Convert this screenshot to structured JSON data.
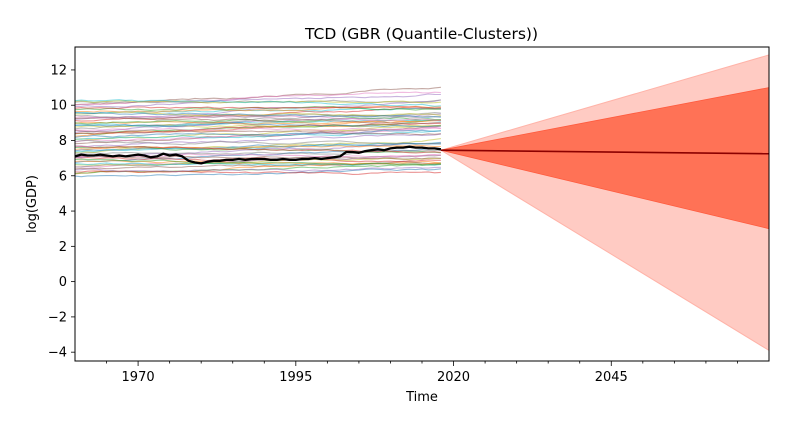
{
  "chart_data": {
    "type": "line",
    "title": "TCD (GBR (Quantile-Clusters))",
    "xlabel": "Time",
    "ylabel": "log(GDP)",
    "xlim": [
      1960,
      2070
    ],
    "ylim": [
      -4.5,
      13.3
    ],
    "x_ticks": [
      1970,
      1995,
      2020,
      2045
    ],
    "x_tick_labels": [
      "1970",
      "1995",
      "2020",
      "2045"
    ],
    "y_ticks": [
      -4,
      -2,
      0,
      2,
      4,
      6,
      8,
      10,
      12
    ],
    "y_tick_labels": [
      "−4",
      "−2",
      "0",
      "2",
      "4",
      "6",
      "8",
      "10",
      "12"
    ],
    "grid": false,
    "legend": "none",
    "history_years": [
      1960,
      2018
    ],
    "target_series": {
      "name": "TCD",
      "color": "#000000",
      "x": [
        1960,
        1961,
        1962,
        1963,
        1964,
        1965,
        1966,
        1967,
        1968,
        1969,
        1970,
        1971,
        1972,
        1973,
        1974,
        1975,
        1976,
        1977,
        1978,
        1979,
        1980,
        1981,
        1982,
        1983,
        1984,
        1985,
        1986,
        1987,
        1988,
        1989,
        1990,
        1991,
        1992,
        1993,
        1994,
        1995,
        1996,
        1997,
        1998,
        1999,
        2000,
        2001,
        2002,
        2003,
        2004,
        2005,
        2006,
        2007,
        2008,
        2009,
        2010,
        2011,
        2012,
        2013,
        2014,
        2015,
        2016,
        2017,
        2018
      ],
      "y": [
        7.1,
        7.2,
        7.15,
        7.15,
        7.2,
        7.15,
        7.1,
        7.15,
        7.1,
        7.15,
        7.2,
        7.15,
        7.05,
        7.1,
        7.25,
        7.15,
        7.2,
        7.1,
        6.85,
        6.75,
        6.7,
        6.8,
        6.85,
        6.85,
        6.9,
        6.9,
        6.95,
        6.9,
        6.95,
        6.95,
        6.95,
        6.9,
        6.9,
        6.95,
        6.9,
        6.9,
        6.95,
        6.95,
        7.0,
        6.95,
        7.0,
        7.05,
        7.1,
        7.35,
        7.35,
        7.3,
        7.4,
        7.45,
        7.5,
        7.45,
        7.55,
        7.6,
        7.6,
        7.65,
        7.6,
        7.6,
        7.55,
        7.55,
        7.5
      ]
    },
    "forecast": {
      "start": [
        2018,
        7.45
      ],
      "end_year": 2070,
      "median_end": 7.25,
      "median_color": "#8b0000",
      "inner_band": {
        "upper_end": 11.0,
        "lower_end": 3.0,
        "color": "#ff7256"
      },
      "outer_band": {
        "upper_end": 12.85,
        "lower_end": -3.9,
        "color": "#ffcbc3"
      }
    },
    "cluster_series_count": 60,
    "cluster_series_range": [
      5.8,
      11.4
    ],
    "cluster_series_colors": [
      "#1f77b4",
      "#ff7f0e",
      "#2ca02c",
      "#d62728",
      "#9467bd",
      "#8c564b",
      "#e377c2",
      "#7f7f7f",
      "#bcbd22",
      "#17becf"
    ]
  }
}
